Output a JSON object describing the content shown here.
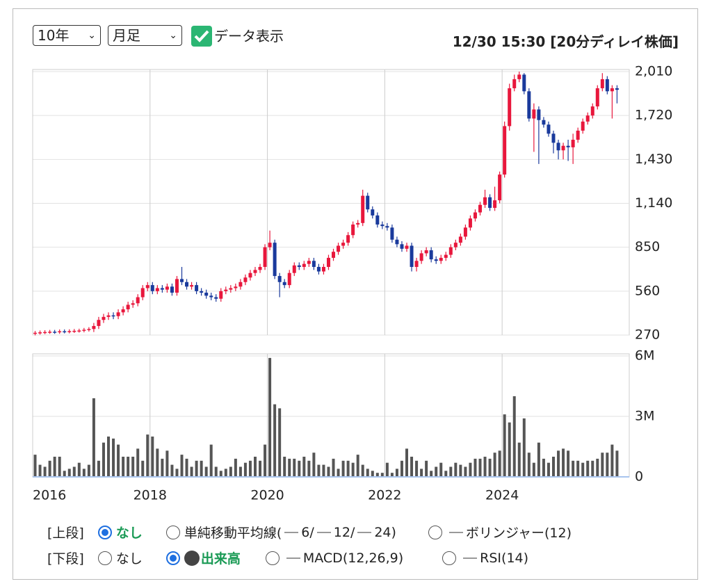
{
  "controls": {
    "period": "10年",
    "interval": "月足",
    "show_data": "データ表示",
    "timestamp": "12/30 15:30 [20分ディレイ株価]"
  },
  "upper_options": {
    "label": "[上段]",
    "none": "なし",
    "sma_prefix": "単純移動平均線(",
    "sma_6": "6/",
    "sma_12": "12/",
    "sma_24": "24)",
    "bollinger": "ボリンジャー(12)"
  },
  "lower_options": {
    "label": "[下段]",
    "none": "なし",
    "volume": "出来高",
    "macd": "MACD(12,26,9)",
    "rsi": "RSI(14)"
  },
  "chart_data": [
    {
      "type": "candlestick",
      "up_color": "#e8173c",
      "down_color": "#1a3a9c",
      "grid": true,
      "ylim": [
        270,
        2010
      ],
      "yticks": [
        {
          "value": 270,
          "label": "270"
        },
        {
          "value": 560,
          "label": "560"
        },
        {
          "value": 850,
          "label": "850"
        },
        {
          "value": 1140,
          "label": "1,140"
        },
        {
          "value": 1430,
          "label": "1,430"
        },
        {
          "value": 1720,
          "label": "1,720"
        },
        {
          "value": 2010,
          "label": "2,010"
        }
      ],
      "open": [
        280,
        285,
        288,
        290,
        292,
        290,
        295,
        293,
        296,
        298,
        300,
        305,
        310,
        330,
        370,
        390,
        400,
        395,
        420,
        440,
        470,
        480,
        520,
        580,
        600,
        560,
        580,
        570,
        590,
        550,
        640,
        620,
        590,
        600,
        560,
        550,
        530,
        520,
        510,
        560,
        570,
        580,
        590,
        620,
        650,
        680,
        700,
        720,
        850,
        880,
        660,
        620,
        600,
        680,
        730,
        720,
        740,
        760,
        720,
        690,
        720,
        780,
        820,
        860,
        880,
        930,
        1000,
        1010,
        1190,
        1100,
        1060,
        1000,
        990,
        980,
        900,
        870,
        840,
        860,
        720,
        760,
        810,
        830,
        770,
        760,
        780,
        800,
        850,
        880,
        920,
        980,
        1040,
        1080,
        1130,
        1180,
        1110,
        1160,
        1330,
        1650,
        1900,
        1960,
        1990,
        1880,
        1700,
        1760,
        1690,
        1660,
        1600,
        1540,
        1490,
        1520,
        1510,
        1560,
        1620,
        1680,
        1720,
        1780,
        1900,
        1960,
        1880,
        1900
      ],
      "high": [
        297,
        300,
        302,
        304,
        304,
        307,
        307,
        308,
        310,
        312,
        317,
        322,
        350,
        390,
        410,
        420,
        420,
        440,
        460,
        490,
        500,
        540,
        600,
        620,
        620,
        600,
        600,
        610,
        610,
        660,
        720,
        640,
        620,
        620,
        580,
        570,
        550,
        540,
        580,
        590,
        600,
        610,
        640,
        670,
        700,
        720,
        740,
        870,
        960,
        900,
        680,
        640,
        700,
        750,
        750,
        760,
        780,
        780,
        740,
        740,
        800,
        840,
        880,
        900,
        950,
        1020,
        1030,
        1230,
        1210,
        1120,
        1080,
        1020,
        1010,
        1000,
        920,
        890,
        880,
        880,
        780,
        830,
        850,
        850,
        790,
        800,
        820,
        870,
        900,
        940,
        1000,
        1060,
        1100,
        1150,
        1230,
        1200,
        1250,
        1350,
        1680,
        1930,
        1990,
        2010,
        2000,
        1900,
        1800,
        1780,
        1710,
        1680,
        1620,
        1560,
        1540,
        1560,
        1600,
        1640,
        1700,
        1740,
        1800,
        1920,
        2000,
        1980,
        1920,
        1920
      ],
      "low": [
        268,
        273,
        276,
        278,
        278,
        278,
        281,
        281,
        284,
        286,
        288,
        293,
        290,
        310,
        350,
        370,
        375,
        375,
        400,
        420,
        450,
        460,
        500,
        560,
        540,
        540,
        550,
        550,
        530,
        530,
        600,
        570,
        570,
        540,
        530,
        510,
        500,
        490,
        490,
        540,
        550,
        560,
        570,
        600,
        630,
        660,
        680,
        700,
        830,
        640,
        520,
        580,
        580,
        660,
        700,
        700,
        720,
        700,
        670,
        670,
        700,
        760,
        800,
        840,
        860,
        910,
        980,
        990,
        1080,
        1040,
        980,
        970,
        960,
        880,
        850,
        820,
        820,
        690,
        690,
        740,
        790,
        750,
        740,
        740,
        760,
        780,
        830,
        860,
        900,
        960,
        1020,
        1060,
        1110,
        1090,
        1090,
        1140,
        1310,
        1620,
        1880,
        1940,
        1860,
        1680,
        1480,
        1400,
        1640,
        1580,
        1470,
        1430,
        1430,
        1420,
        1400,
        1540,
        1600,
        1660,
        1700,
        1760,
        1880,
        1860,
        1700,
        1800
      ],
      "close": [
        285,
        288,
        290,
        292,
        290,
        295,
        293,
        296,
        298,
        300,
        305,
        310,
        330,
        370,
        390,
        400,
        395,
        420,
        440,
        470,
        480,
        520,
        580,
        600,
        560,
        580,
        570,
        590,
        550,
        640,
        620,
        590,
        600,
        560,
        550,
        530,
        520,
        510,
        560,
        570,
        580,
        590,
        620,
        650,
        680,
        700,
        720,
        850,
        880,
        660,
        620,
        600,
        680,
        730,
        720,
        740,
        760,
        720,
        690,
        720,
        780,
        820,
        860,
        880,
        930,
        1000,
        1010,
        1190,
        1100,
        1060,
        1000,
        990,
        980,
        900,
        870,
        840,
        860,
        720,
        760,
        810,
        830,
        770,
        760,
        780,
        800,
        850,
        880,
        920,
        980,
        1040,
        1080,
        1130,
        1180,
        1110,
        1160,
        1330,
        1650,
        1900,
        1960,
        1990,
        1880,
        1700,
        1760,
        1690,
        1660,
        1600,
        1540,
        1490,
        1520,
        1510,
        1560,
        1620,
        1680,
        1720,
        1780,
        1900,
        1960,
        1880,
        1900,
        1890
      ]
    },
    {
      "type": "bar",
      "color": "#555555",
      "grid": true,
      "ylim": [
        0,
        6000000
      ],
      "yticks": [
        0,
        {
          "value": 3000000,
          "label": "3M"
        },
        {
          "value": 6000000,
          "label": "6M"
        }
      ],
      "categories": [
        "2016",
        null,
        null,
        null,
        null,
        null,
        null,
        null,
        null,
        null,
        null,
        null,
        null,
        null,
        null,
        null,
        null,
        null,
        null,
        null,
        null,
        null,
        null,
        null,
        "2018",
        null,
        null,
        null,
        null,
        null,
        null,
        null,
        null,
        null,
        null,
        null,
        null,
        null,
        null,
        null,
        null,
        null,
        null,
        null,
        null,
        null,
        null,
        null,
        "2020",
        null,
        null,
        null,
        null,
        null,
        null,
        null,
        null,
        null,
        null,
        null,
        null,
        null,
        null,
        null,
        null,
        null,
        null,
        null,
        null,
        null,
        null,
        null,
        "2022",
        null,
        null,
        null,
        null,
        null,
        null,
        null,
        null,
        null,
        null,
        null,
        null,
        null,
        null,
        null,
        null,
        null,
        null,
        null,
        null,
        null,
        null,
        null,
        "2024",
        null,
        null,
        null,
        null,
        null,
        null,
        null,
        null,
        null,
        null,
        null,
        null,
        null,
        null,
        null,
        null,
        null,
        null,
        null,
        null,
        null,
        null,
        null
      ],
      "values": [
        1100000,
        600000,
        500000,
        800000,
        1000000,
        1000000,
        300000,
        400000,
        500000,
        700000,
        400000,
        600000,
        3900000,
        800000,
        1700000,
        2000000,
        1900000,
        1600000,
        1000000,
        1000000,
        1000000,
        1400000,
        800000,
        2100000,
        2000000,
        1400000,
        900000,
        1300000,
        600000,
        400000,
        1100000,
        900000,
        500000,
        800000,
        800000,
        500000,
        1600000,
        500000,
        300000,
        400000,
        500000,
        900000,
        500000,
        700000,
        800000,
        1000000,
        800000,
        1600000,
        5900000,
        3600000,
        3400000,
        1000000,
        900000,
        900000,
        800000,
        1000000,
        800000,
        1200000,
        600000,
        600000,
        500000,
        900000,
        400000,
        800000,
        800000,
        700000,
        1100000,
        600000,
        400000,
        300000,
        200000,
        200000,
        700000,
        200000,
        400000,
        800000,
        1400000,
        1000000,
        800000,
        400000,
        800000,
        300000,
        500000,
        700000,
        300000,
        500000,
        700000,
        600000,
        500000,
        700000,
        900000,
        900000,
        1000000,
        900000,
        1200000,
        1300000,
        3100000,
        2700000,
        4000000,
        1700000,
        2900000,
        1200000,
        700000,
        1700000,
        900000,
        700000,
        1000000,
        1300000,
        1400000,
        1300000,
        800000,
        800000,
        700000,
        800000,
        800000,
        900000,
        1200000,
        1200000,
        1600000,
        1300000
      ]
    }
  ]
}
